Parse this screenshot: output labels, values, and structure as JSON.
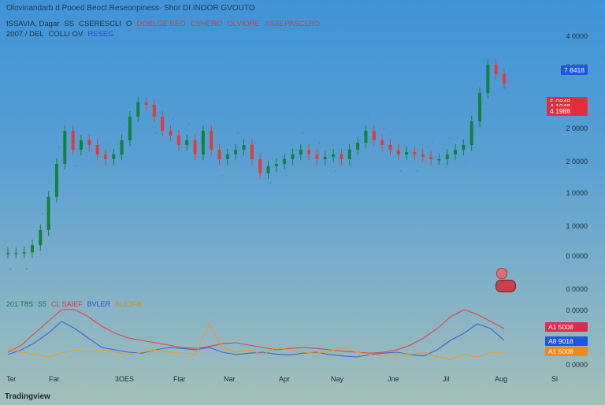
{
  "header": {
    "line1": "Olovinandarb d Pooed Beoct Reseonpiness- Shor DI INOOR GVOUTO",
    "line2": [
      {
        "text": "ISSAVIA, Dagar",
        "color": "dark"
      },
      {
        "text": "SS",
        "color": "dark"
      },
      {
        "text": "CSERESCLI",
        "color": "dark"
      },
      {
        "text": "O",
        "color": "dark"
      },
      {
        "text": "DOBLGE BEO",
        "color": "red"
      },
      {
        "text": "CSHERO",
        "color": "red"
      },
      {
        "text": "OLVIORE",
        "color": "red"
      },
      {
        "text": "ASSEPASCLRO",
        "color": "red"
      }
    ],
    "line3": [
      {
        "text": "2007 / DEL",
        "color": "dark"
      },
      {
        "text": "COLLI OV",
        "color": "dark"
      },
      {
        "text": "RESEG",
        "color": "blue"
      }
    ]
  },
  "price_axis": [
    "4 0000",
    "3 0000",
    "2 0000",
    "2 0000",
    "1 0000",
    "1 0000",
    "0 0000",
    "0 0000"
  ],
  "price_badges": [
    {
      "text": "7 8418",
      "color": "#1f55e0"
    },
    {
      "text": "5 9848",
      "color": "#e03040"
    },
    {
      "text": "4 1948",
      "color": "#e03040"
    },
    {
      "text": "4 1988",
      "color": "#e03040"
    }
  ],
  "osc_axis": [
    "0 0000",
    "0 0000"
  ],
  "osc_badges": [
    {
      "text": "A1 5008",
      "color": "#e02a4a"
    },
    {
      "text": "A8 9018",
      "color": "#1f55e0"
    },
    {
      "text": "A1 5008",
      "color": "#ef8a1a"
    }
  ],
  "osc_legend": [
    {
      "text": "201 T8S",
      "color": "green"
    },
    {
      "text": "S5",
      "color": "green"
    },
    {
      "text": "CL SAIEF",
      "color": "red"
    },
    {
      "text": "BVLER",
      "color": "blue"
    },
    {
      "text": "BLE3FB",
      "color": "orange"
    }
  ],
  "x_axis": [
    "Ter",
    "Far",
    "3OES",
    "Flar",
    "Nar",
    "Apr",
    "Nay",
    "Jne",
    "Jil",
    "Aug",
    "Sl"
  ],
  "watermark": "Tradingview",
  "colors": {
    "up": "#13823f",
    "down": "#e23b3b",
    "osc_red": "#e0434a",
    "osc_blue": "#3566d8",
    "osc_orange": "#e79a2b",
    "sar": "#3d84e6"
  },
  "chart_data": {
    "type": "candlestick",
    "closes": [
      0.02,
      0.02,
      0.03,
      0.18,
      0.5,
      1.2,
      1.9,
      2.6,
      2.2,
      2.4,
      2.3,
      2.1,
      2.0,
      2.1,
      2.4,
      2.9,
      3.2,
      3.15,
      2.9,
      2.6,
      2.5,
      2.3,
      2.4,
      2.1,
      2.6,
      2.2,
      2.0,
      2.1,
      2.2,
      2.3,
      2.0,
      1.7,
      1.85,
      1.9,
      2.0,
      2.1,
      2.2,
      2.1,
      2.0,
      2.05,
      2.1,
      2.0,
      2.2,
      2.35,
      2.6,
      2.4,
      2.3,
      2.2,
      2.1,
      2.15,
      2.1,
      2.05,
      2.0,
      2.0,
      2.1,
      2.2,
      2.3,
      2.8,
      3.4,
      4.0,
      3.8,
      3.6
    ],
    "oscillator_series": [
      "red",
      "blue",
      "orange"
    ]
  }
}
